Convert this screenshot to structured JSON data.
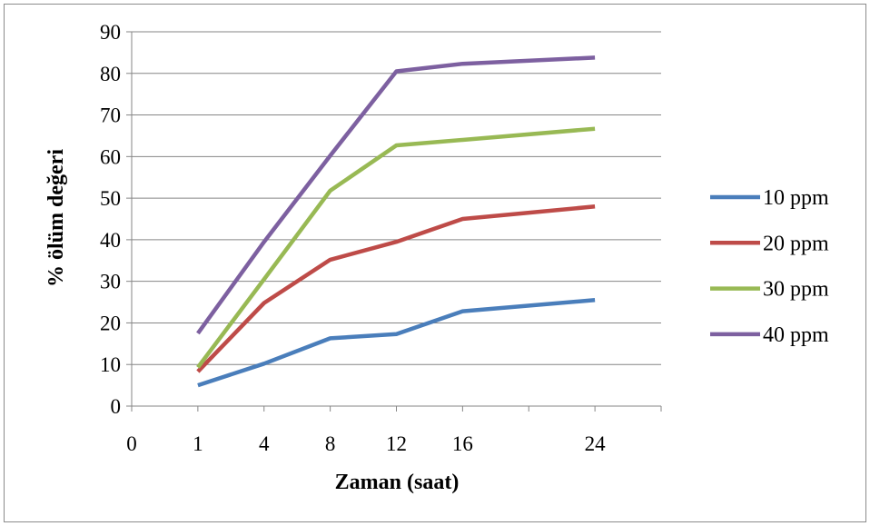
{
  "chart_data": {
    "type": "line",
    "title": "",
    "xlabel": "Zaman (saat)",
    "ylabel": "% ölüm değeri",
    "x_categories": [
      "0",
      "1",
      "4",
      "8",
      "12",
      "16",
      "",
      "24",
      ""
    ],
    "x": [
      1,
      4,
      8,
      12,
      16,
      24
    ],
    "ylim": [
      0,
      90
    ],
    "yticks": [
      0,
      10,
      20,
      30,
      40,
      50,
      60,
      70,
      80,
      90
    ],
    "grid": true,
    "legend_position": "right",
    "series": [
      {
        "name": "10 ppm",
        "color": "#4a7ebb",
        "values": [
          5,
          10.2,
          16.3,
          17.3,
          22.8,
          25.5
        ]
      },
      {
        "name": "20 ppm",
        "color": "#be4b48",
        "values": [
          8.3,
          24.8,
          35.2,
          39.5,
          45,
          48
        ]
      },
      {
        "name": "30 ppm",
        "color": "#98b954",
        "values": [
          9.3,
          30.5,
          51.8,
          62.7,
          64,
          66.7
        ]
      },
      {
        "name": "40 ppm",
        "color": "#7d60a0",
        "values": [
          17.5,
          39.5,
          60.2,
          80.5,
          82.3,
          83.8
        ]
      }
    ]
  }
}
